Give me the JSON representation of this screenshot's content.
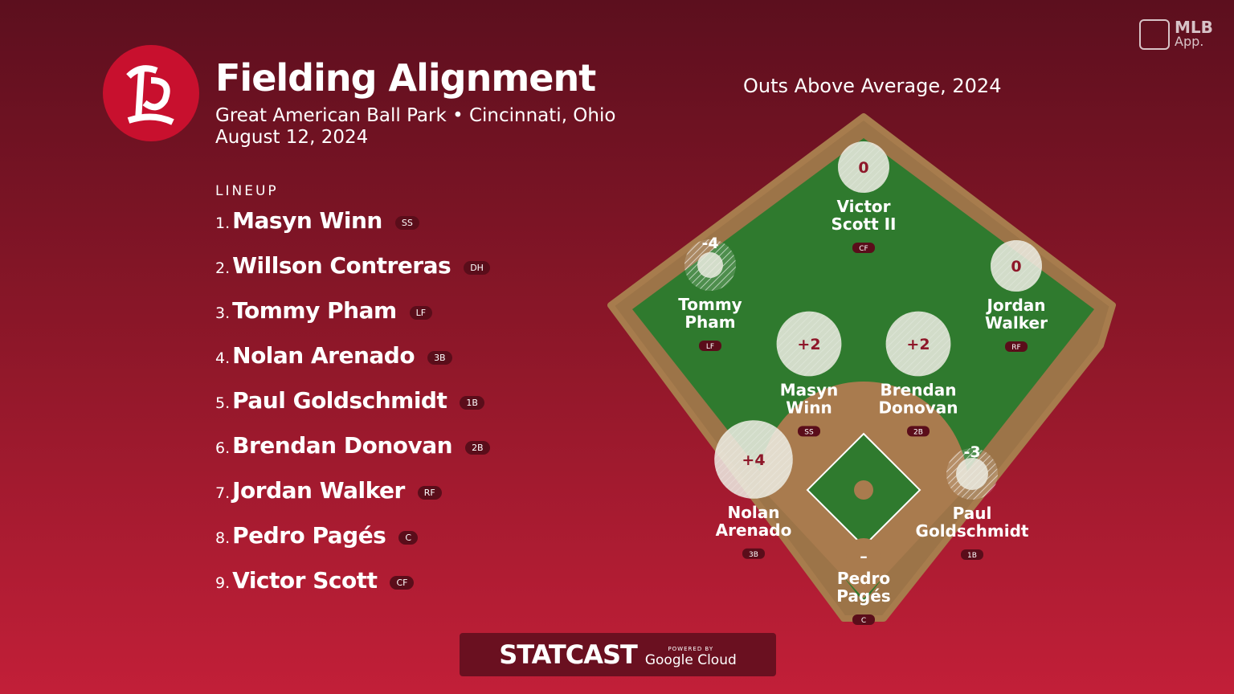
{
  "header": {
    "title": "Fielding Alignment",
    "venue": "Great American Ball Park • Cincinnati, Ohio",
    "date": "August 12, 2024"
  },
  "brand": {
    "name": "MLB",
    "sub": "App."
  },
  "lineup": {
    "label": "LINEUP",
    "players": [
      {
        "order": "1.",
        "name": "Masyn Winn",
        "pos": "SS"
      },
      {
        "order": "2.",
        "name": "Willson Contreras",
        "pos": "DH"
      },
      {
        "order": "3.",
        "name": "Tommy Pham",
        "pos": "LF"
      },
      {
        "order": "4.",
        "name": "Nolan Arenado",
        "pos": "3B"
      },
      {
        "order": "5.",
        "name": "Paul Goldschmidt",
        "pos": "1B"
      },
      {
        "order": "6.",
        "name": "Brendan Donovan",
        "pos": "2B"
      },
      {
        "order": "7.",
        "name": "Jordan Walker",
        "pos": "RF"
      },
      {
        "order": "8.",
        "name": "Pedro Pagés",
        "pos": "C"
      },
      {
        "order": "9.",
        "name": "Victor Scott",
        "pos": "CF"
      }
    ]
  },
  "field": {
    "title": "Outs Above Average, 2024",
    "fielders": [
      {
        "name_lines": [
          "Victor",
          "Scott II"
        ],
        "pos": "CF",
        "oaa": 0
      },
      {
        "name_lines": [
          "Tommy",
          "Pham"
        ],
        "pos": "LF",
        "oaa": -4
      },
      {
        "name_lines": [
          "Jordan",
          "Walker"
        ],
        "pos": "RF",
        "oaa": 0
      },
      {
        "name_lines": [
          "Masyn",
          "Winn"
        ],
        "pos": "SS",
        "oaa": {
          "value": 2,
          "label": "+2"
        }
      },
      {
        "name_lines": [
          "Brendan",
          "Donovan"
        ],
        "pos": "2B",
        "oaa": {
          "value": 2,
          "label": "+2"
        }
      },
      {
        "name_lines": [
          "Nolan",
          "Arenado"
        ],
        "pos": "3B",
        "oaa": {
          "value": 4,
          "label": "+4"
        }
      },
      {
        "name_lines": [
          "Paul",
          "Goldschmidt"
        ],
        "pos": "1B",
        "oaa": -3
      },
      {
        "name_lines": [
          "Pedro",
          "Pagés"
        ],
        "pos": "C",
        "oaa": {
          "value": null,
          "label": "–"
        }
      }
    ]
  },
  "footer": {
    "brand": "STATCAST",
    "powered": "POWERED BY",
    "partner": "Google Cloud"
  }
}
